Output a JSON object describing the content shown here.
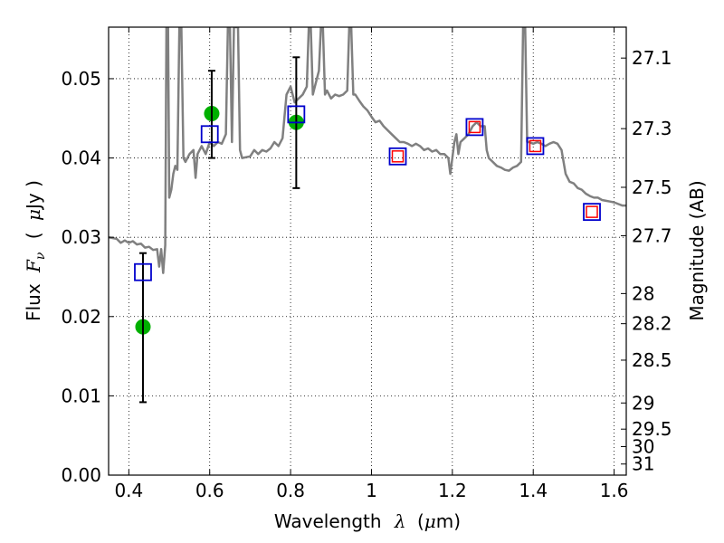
{
  "chart_data": {
    "type": "line",
    "xlabel_prefix": "Wavelength",
    "xlabel_symbol": "λ",
    "xlabel_unit_open": "(",
    "xlabel_unit_mu": "μ",
    "xlabel_unit_close": "m)",
    "ylabel_prefix": "Flux",
    "ylabel_symbol": "F",
    "ylabel_subscript": "ν",
    "ylabel_unit_open": "(",
    "ylabel_unit_mu": "μ",
    "ylabel_unit_close": "Jy )",
    "y2label": "Magnitude (AB)",
    "xlim": [
      0.35,
      1.63
    ],
    "ylim": [
      0.0,
      0.0565
    ],
    "grid": true,
    "x_ticks": [
      {
        "value": 0.4,
        "label": "0.4"
      },
      {
        "value": 0.6,
        "label": "0.6"
      },
      {
        "value": 0.8,
        "label": "0.8"
      },
      {
        "value": 1.0,
        "label": "1"
      },
      {
        "value": 1.2,
        "label": "1.2"
      },
      {
        "value": 1.4,
        "label": "1.4"
      },
      {
        "value": 1.6,
        "label": "1.6"
      }
    ],
    "y_ticks": [
      {
        "value": 0.0,
        "label": "0.00"
      },
      {
        "value": 0.01,
        "label": "0.01"
      },
      {
        "value": 0.02,
        "label": "0.02"
      },
      {
        "value": 0.03,
        "label": "0.03"
      },
      {
        "value": 0.04,
        "label": "0.04"
      },
      {
        "value": 0.05,
        "label": "0.05"
      }
    ],
    "y2_ticks": [
      {
        "flux": 0.0526,
        "label": "27.1"
      },
      {
        "flux": 0.0437,
        "label": "27.3"
      },
      {
        "flux": 0.0363,
        "label": "27.5"
      },
      {
        "flux": 0.0302,
        "label": "27.7"
      },
      {
        "flux": 0.0229,
        "label": "28"
      },
      {
        "flux": 0.0191,
        "label": "28.2"
      },
      {
        "flux": 0.0145,
        "label": "28.5"
      },
      {
        "flux": 0.0091,
        "label": "29"
      },
      {
        "flux": 0.0058,
        "label": "29.5"
      },
      {
        "flux": 0.0036,
        "label": "30"
      },
      {
        "flux": 0.0014,
        "label": "31"
      }
    ],
    "series": [
      {
        "name": "model SED",
        "style": "line",
        "color": "#808080",
        "points": [
          [
            0.35,
            0.03
          ],
          [
            0.37,
            0.0298
          ],
          [
            0.38,
            0.0293
          ],
          [
            0.39,
            0.0296
          ],
          [
            0.4,
            0.0293
          ],
          [
            0.41,
            0.0295
          ],
          [
            0.42,
            0.0291
          ],
          [
            0.43,
            0.0292
          ],
          [
            0.44,
            0.0287
          ],
          [
            0.45,
            0.0288
          ],
          [
            0.46,
            0.0284
          ],
          [
            0.47,
            0.0285
          ],
          [
            0.475,
            0.0263
          ],
          [
            0.48,
            0.0285
          ],
          [
            0.485,
            0.0255
          ],
          [
            0.49,
            0.029
          ],
          [
            0.493,
            0.0565
          ],
          [
            0.497,
            0.0565
          ],
          [
            0.5,
            0.035
          ],
          [
            0.505,
            0.036
          ],
          [
            0.51,
            0.038
          ],
          [
            0.515,
            0.039
          ],
          [
            0.52,
            0.0385
          ],
          [
            0.525,
            0.0565
          ],
          [
            0.53,
            0.0565
          ],
          [
            0.535,
            0.04
          ],
          [
            0.54,
            0.0395
          ],
          [
            0.55,
            0.0405
          ],
          [
            0.56,
            0.041
          ],
          [
            0.565,
            0.0375
          ],
          [
            0.57,
            0.0405
          ],
          [
            0.58,
            0.0415
          ],
          [
            0.59,
            0.0405
          ],
          [
            0.6,
            0.042
          ],
          [
            0.61,
            0.0415
          ],
          [
            0.62,
            0.042
          ],
          [
            0.63,
            0.0418
          ],
          [
            0.64,
            0.043
          ],
          [
            0.645,
            0.0565
          ],
          [
            0.65,
            0.0565
          ],
          [
            0.655,
            0.042
          ],
          [
            0.66,
            0.0565
          ],
          [
            0.67,
            0.0565
          ],
          [
            0.675,
            0.041
          ],
          [
            0.68,
            0.04
          ],
          [
            0.7,
            0.0402
          ],
          [
            0.71,
            0.041
          ],
          [
            0.72,
            0.0405
          ],
          [
            0.73,
            0.041
          ],
          [
            0.74,
            0.0408
          ],
          [
            0.75,
            0.0412
          ],
          [
            0.76,
            0.042
          ],
          [
            0.77,
            0.0415
          ],
          [
            0.78,
            0.0425
          ],
          [
            0.79,
            0.048
          ],
          [
            0.8,
            0.049
          ],
          [
            0.81,
            0.047
          ],
          [
            0.82,
            0.0475
          ],
          [
            0.83,
            0.048
          ],
          [
            0.84,
            0.049
          ],
          [
            0.845,
            0.0565
          ],
          [
            0.85,
            0.0565
          ],
          [
            0.855,
            0.048
          ],
          [
            0.86,
            0.049
          ],
          [
            0.87,
            0.051
          ],
          [
            0.875,
            0.0565
          ],
          [
            0.88,
            0.0565
          ],
          [
            0.885,
            0.048
          ],
          [
            0.89,
            0.0485
          ],
          [
            0.9,
            0.0475
          ],
          [
            0.91,
            0.048
          ],
          [
            0.92,
            0.0478
          ],
          [
            0.93,
            0.048
          ],
          [
            0.94,
            0.0485
          ],
          [
            0.945,
            0.0565
          ],
          [
            0.95,
            0.0565
          ],
          [
            0.955,
            0.048
          ],
          [
            0.96,
            0.048
          ],
          [
            0.97,
            0.0472
          ],
          [
            0.98,
            0.0465
          ],
          [
            0.99,
            0.046
          ],
          [
            1.0,
            0.0452
          ],
          [
            1.01,
            0.0445
          ],
          [
            1.02,
            0.0447
          ],
          [
            1.03,
            0.044
          ],
          [
            1.04,
            0.0435
          ],
          [
            1.05,
            0.043
          ],
          [
            1.06,
            0.0425
          ],
          [
            1.07,
            0.042
          ],
          [
            1.08,
            0.042
          ],
          [
            1.09,
            0.0418
          ],
          [
            1.1,
            0.0415
          ],
          [
            1.11,
            0.0418
          ],
          [
            1.12,
            0.0415
          ],
          [
            1.13,
            0.041
          ],
          [
            1.14,
            0.0412
          ],
          [
            1.15,
            0.0408
          ],
          [
            1.16,
            0.041
          ],
          [
            1.17,
            0.0405
          ],
          [
            1.18,
            0.0405
          ],
          [
            1.19,
            0.04
          ],
          [
            1.195,
            0.038
          ],
          [
            1.2,
            0.04
          ],
          [
            1.205,
            0.042
          ],
          [
            1.21,
            0.043
          ],
          [
            1.215,
            0.0405
          ],
          [
            1.22,
            0.042
          ],
          [
            1.23,
            0.0425
          ],
          [
            1.24,
            0.043
          ],
          [
            1.25,
            0.044
          ],
          [
            1.26,
            0.0445
          ],
          [
            1.27,
            0.044
          ],
          [
            1.28,
            0.044
          ],
          [
            1.285,
            0.041
          ],
          [
            1.29,
            0.04
          ],
          [
            1.3,
            0.0395
          ],
          [
            1.31,
            0.039
          ],
          [
            1.32,
            0.0388
          ],
          [
            1.33,
            0.0385
          ],
          [
            1.34,
            0.0384
          ],
          [
            1.35,
            0.0388
          ],
          [
            1.36,
            0.039
          ],
          [
            1.37,
            0.0395
          ],
          [
            1.375,
            0.0565
          ],
          [
            1.38,
            0.0565
          ],
          [
            1.385,
            0.042
          ],
          [
            1.39,
            0.042
          ],
          [
            1.4,
            0.0418
          ],
          [
            1.41,
            0.042
          ],
          [
            1.42,
            0.0418
          ],
          [
            1.43,
            0.0415
          ],
          [
            1.44,
            0.0418
          ],
          [
            1.45,
            0.042
          ],
          [
            1.46,
            0.0418
          ],
          [
            1.47,
            0.041
          ],
          [
            1.48,
            0.038
          ],
          [
            1.49,
            0.037
          ],
          [
            1.5,
            0.0368
          ],
          [
            1.51,
            0.0362
          ],
          [
            1.52,
            0.036
          ],
          [
            1.53,
            0.0355
          ],
          [
            1.54,
            0.0352
          ],
          [
            1.55,
            0.035
          ],
          [
            1.56,
            0.035
          ],
          [
            1.57,
            0.0347
          ],
          [
            1.58,
            0.0346
          ],
          [
            1.59,
            0.0345
          ],
          [
            1.6,
            0.0344
          ],
          [
            1.61,
            0.0342
          ],
          [
            1.62,
            0.034
          ],
          [
            1.63,
            0.034
          ]
        ]
      },
      {
        "name": "observed photometry",
        "style": "markers",
        "marker": "circle",
        "color": "#00b000",
        "points": [
          [
            0.435,
            0.0187
          ],
          [
            0.605,
            0.0456
          ],
          [
            0.814,
            0.0445
          ]
        ]
      },
      {
        "name": "observed errorbars",
        "style": "errorbar",
        "color": "#000000",
        "points": [
          {
            "x": 0.435,
            "low": 0.0092,
            "high": 0.028
          },
          {
            "x": 0.605,
            "low": 0.04,
            "high": 0.051
          },
          {
            "x": 0.814,
            "low": 0.0362,
            "high": 0.0527
          }
        ]
      },
      {
        "name": "model photometry (blue squares)",
        "style": "markers",
        "marker": "square",
        "color": "#0000cc",
        "points": [
          [
            0.435,
            0.0256
          ],
          [
            0.6,
            0.043
          ],
          [
            0.814,
            0.0455
          ],
          [
            1.065,
            0.0402
          ],
          [
            1.255,
            0.0439
          ],
          [
            1.405,
            0.0415
          ],
          [
            1.545,
            0.0332
          ]
        ]
      },
      {
        "name": "model photometry (red squares)",
        "style": "markers",
        "marker": "square",
        "color": "#ff0000",
        "points": [
          [
            1.065,
            0.0402
          ],
          [
            1.255,
            0.0439
          ],
          [
            1.405,
            0.0415
          ],
          [
            1.545,
            0.0332
          ]
        ]
      }
    ]
  }
}
